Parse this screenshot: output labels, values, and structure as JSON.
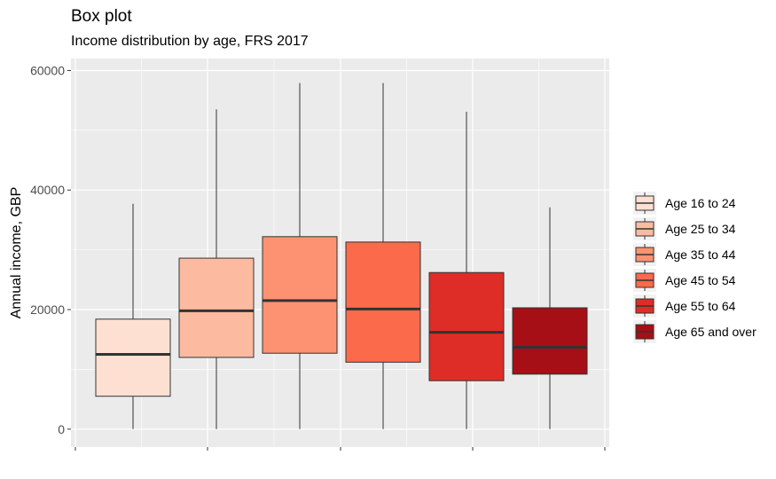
{
  "chart_data": {
    "type": "box",
    "title": "Box plot",
    "subtitle": "Income distribution by age, FRS 2017",
    "ylabel": "Annual income, GBP",
    "xlabel": "",
    "ylim": [
      -3000,
      62000
    ],
    "yticks": [
      0,
      20000,
      40000,
      60000
    ],
    "grid": true,
    "legend_position": "right",
    "series": [
      {
        "name": "Age 16 to 24",
        "color": "#FEE0D2",
        "min": 0,
        "q1": 5500,
        "median": 12500,
        "q3": 18400,
        "max": 37700
      },
      {
        "name": "Age 25 to 34",
        "color": "#FCBBA1",
        "min": 0,
        "q1": 12000,
        "median": 19800,
        "q3": 28600,
        "max": 53500
      },
      {
        "name": "Age 35 to 44",
        "color": "#FC9272",
        "min": 0,
        "q1": 12700,
        "median": 21500,
        "q3": 32200,
        "max": 57900
      },
      {
        "name": "Age 45 to 54",
        "color": "#FB6A4A",
        "min": 0,
        "q1": 11200,
        "median": 20100,
        "q3": 31300,
        "max": 57900
      },
      {
        "name": "Age 55 to 64",
        "color": "#DE2D26",
        "min": 0,
        "q1": 8100,
        "median": 16200,
        "q3": 26200,
        "max": 53100
      },
      {
        "name": "Age 65 and over",
        "color": "#A50F15",
        "min": 0,
        "q1": 9200,
        "median": 13700,
        "q3": 20300,
        "max": 37100
      }
    ]
  }
}
